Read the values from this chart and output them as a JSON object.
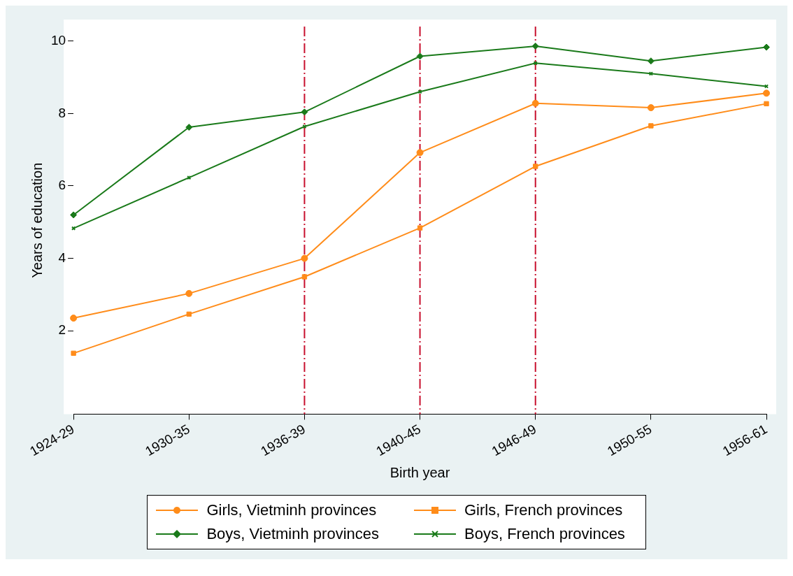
{
  "chart_data": {
    "type": "line",
    "xlabel": "Birth year",
    "ylabel": "Years of education",
    "categories": [
      "1924-29",
      "1930-35",
      "1936-39",
      "1940-45",
      "1946-49",
      "1950-55",
      "1956-61"
    ],
    "series": [
      {
        "name": "Girls, Vietminh provinces",
        "color": "#ff8c1a",
        "marker": "circle",
        "values": [
          2.35,
          3.03,
          4.0,
          6.92,
          8.28,
          8.16,
          8.56
        ]
      },
      {
        "name": "Girls, French provinces",
        "color": "#ff8c1a",
        "marker": "square",
        "values": [
          1.38,
          2.46,
          3.49,
          4.84,
          6.54,
          7.66,
          8.27
        ]
      },
      {
        "name": "Boys, Vietminh provinces",
        "color": "#1a7a1a",
        "marker": "diamond",
        "values": [
          5.2,
          7.62,
          8.04,
          9.58,
          9.86,
          9.45,
          9.83
        ]
      },
      {
        "name": "Boys, French provinces",
        "color": "#1a7a1a",
        "marker": "cross",
        "values": [
          4.83,
          6.23,
          7.64,
          8.6,
          9.39,
          9.1,
          8.75
        ]
      }
    ],
    "ylim": [
      -0.3,
      10.4
    ],
    "yticks": [
      2,
      4,
      6,
      8,
      10
    ],
    "grid": false,
    "legend": "bottom",
    "ref_lines": [
      {
        "axis": "x",
        "value": "1936-39",
        "color": "#c8102e",
        "line_style": "dashed"
      },
      {
        "axis": "x",
        "value": "1940-45",
        "color": "#c8102e",
        "line_style": "dashed"
      },
      {
        "axis": "x",
        "value": "1946-49",
        "color": "#c8102e",
        "line_style": "dashed"
      }
    ]
  }
}
